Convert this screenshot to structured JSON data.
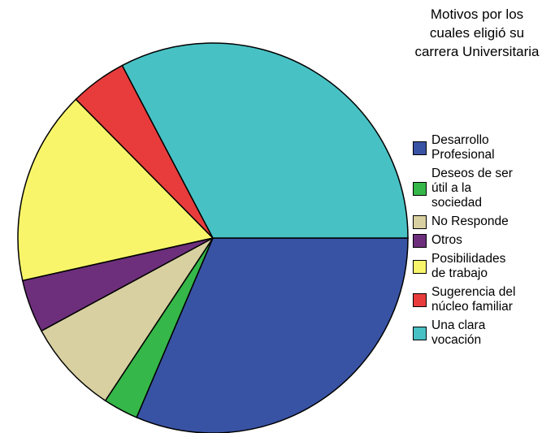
{
  "chart_data": {
    "type": "pie",
    "legend_title": "Motivos por los cuales eligió su carrera Universitaria",
    "categories": [
      "Desarrollo Profesional",
      "Deseos de ser útil a la sociedad",
      "No Responde",
      "Otros",
      "Posibilidades de trabajo",
      "Sugerencia del núcleo familiar",
      "Una clara vocación"
    ],
    "values": [
      31.4,
      2.9,
      7.8,
      4.4,
      16.1,
      4.7,
      32.7
    ],
    "colors": [
      "#3953a4",
      "#35b749",
      "#d8d0a0",
      "#6d2f7c",
      "#f8f56a",
      "#e83c3c",
      "#48c1c4"
    ],
    "legend": "right"
  }
}
